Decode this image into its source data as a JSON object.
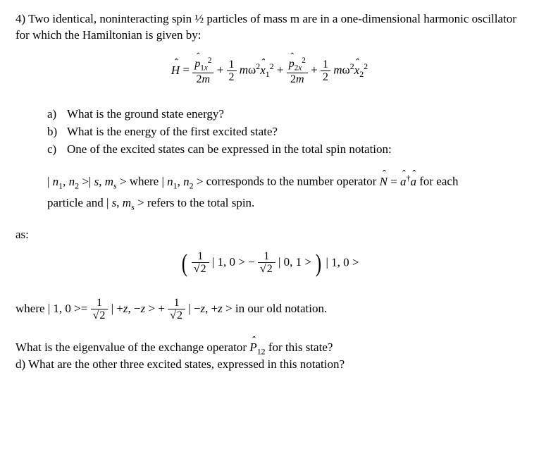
{
  "problem_number": "4)",
  "intro": "Two identical, noninteracting spin ½ particles of mass m are in a one-dimensional harmonic oscillator for which the Hamiltonian is given by:",
  "parts": {
    "a": {
      "label": "a)",
      "text": "What is the ground state energy?"
    },
    "b": {
      "label": "b)",
      "text": "What is the energy of the first excited state?"
    },
    "c": {
      "label": "c)",
      "text": "One of the excited states can be expressed in the total spin notation:"
    }
  },
  "notation_line_part1": " where ",
  "notation_line_part2": " corresponds to the number operator ",
  "notation_line_part3": " for each",
  "notation_line2": "particle and ",
  "notation_line2b": " refers to the total spin.",
  "as": "as:",
  "where_prefix": "where ",
  "where_suffix": " in our old notation.",
  "final_question": "What is the eigenvalue of the exchange operator ",
  "final_question2": " for this state?",
  "part_d": {
    "label": "d)",
    "text": "What are the other three excited states, expressed in this notation?"
  },
  "colors": {
    "text": "#000000",
    "bg": "#ffffff"
  },
  "font": {
    "family": "Times New Roman",
    "size_pt": 12
  }
}
